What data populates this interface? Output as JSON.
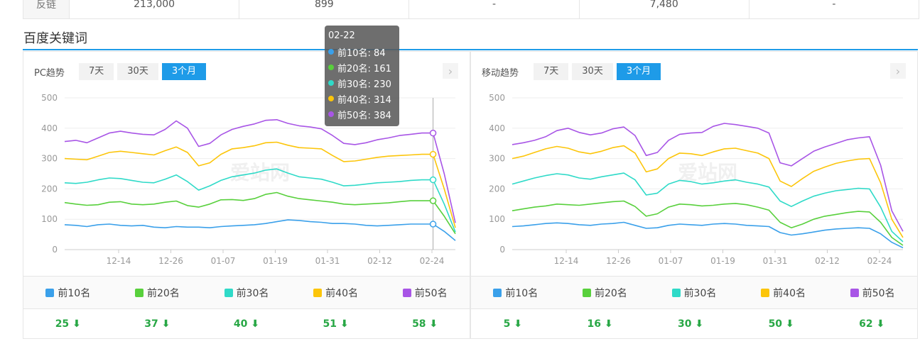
{
  "top_row": {
    "label": "反链",
    "values": [
      "213,000",
      "899",
      "-",
      "7,480",
      "-"
    ]
  },
  "section_title": "百度关键词",
  "watermark": "爱站网",
  "colors": {
    "accent": "#1e9be8",
    "top10": "#3aa0ea",
    "top20": "#58d03c",
    "top30": "#2fdac8",
    "top40": "#fcc50a",
    "top50": "#a855e6",
    "down": "#28a745"
  },
  "series_names": [
    "前10名",
    "前20名",
    "前30名",
    "前40名",
    "前50名"
  ],
  "pc": {
    "title": "PC趋势",
    "tabs": [
      "7天",
      "30天",
      "3个月"
    ],
    "active_tab": "3个月",
    "changes": [
      "25",
      "37",
      "40",
      "51",
      "58"
    ],
    "tooltip": {
      "date": "02-22",
      "rows": [
        "前10名: 84",
        "前20名: 161",
        "前30名: 230",
        "前40名: 314",
        "前50名: 384"
      ]
    }
  },
  "mobile": {
    "title": "移动趋势",
    "tabs": [
      "7天",
      "30天",
      "3个月"
    ],
    "active_tab": "3个月",
    "changes": [
      "5",
      "16",
      "30",
      "50",
      "62"
    ]
  },
  "chart_data": [
    {
      "type": "line",
      "title": "PC趋势",
      "x_ticks": [
        "12-14",
        "12-26",
        "01-07",
        "01-19",
        "01-31",
        "02-12",
        "02-24"
      ],
      "y_ticks": [
        "500",
        "400",
        "300",
        "200",
        "100",
        "0"
      ],
      "ylim": [
        0,
        500
      ],
      "series": [
        {
          "name": "前10名",
          "values": [
            82,
            80,
            76,
            82,
            84,
            80,
            78,
            80,
            74,
            72,
            76,
            74,
            74,
            72,
            76,
            78,
            80,
            82,
            86,
            92,
            98,
            96,
            92,
            90,
            86,
            86,
            84,
            80,
            78,
            80,
            82,
            84,
            84,
            84,
            60,
            30
          ]
        },
        {
          "name": "前20名",
          "values": [
            155,
            150,
            146,
            148,
            156,
            158,
            150,
            148,
            150,
            156,
            160,
            145,
            140,
            150,
            164,
            165,
            162,
            168,
            182,
            188,
            176,
            168,
            164,
            160,
            156,
            150,
            148,
            150,
            152,
            154,
            158,
            161,
            161,
            161,
            110,
            52
          ]
        },
        {
          "name": "前30名",
          "values": [
            220,
            218,
            222,
            230,
            236,
            234,
            228,
            222,
            220,
            232,
            246,
            224,
            196,
            210,
            228,
            240,
            246,
            252,
            262,
            266,
            252,
            240,
            236,
            232,
            222,
            210,
            212,
            216,
            220,
            222,
            224,
            228,
            230,
            230,
            150,
            58
          ]
        },
        {
          "name": "前40名",
          "values": [
            300,
            298,
            296,
            308,
            320,
            324,
            320,
            316,
            312,
            326,
            338,
            320,
            276,
            286,
            314,
            332,
            336,
            342,
            352,
            354,
            344,
            336,
            334,
            332,
            310,
            290,
            292,
            298,
            304,
            308,
            310,
            312,
            314,
            314,
            200,
            72
          ]
        },
        {
          "name": "前50名",
          "values": [
            356,
            360,
            352,
            368,
            384,
            390,
            384,
            380,
            378,
            396,
            424,
            400,
            340,
            350,
            378,
            396,
            406,
            414,
            426,
            428,
            416,
            408,
            404,
            398,
            376,
            350,
            346,
            352,
            362,
            368,
            376,
            380,
            384,
            384,
            250,
            88
          ]
        }
      ]
    },
    {
      "type": "line",
      "title": "移动趋势",
      "x_ticks": [
        "12-14",
        "12-26",
        "01-07",
        "01-19",
        "01-31",
        "02-12",
        "02-24"
      ],
      "y_ticks": [
        "500",
        "400",
        "300",
        "200",
        "100",
        "0"
      ],
      "ylim": [
        0,
        500
      ],
      "series": [
        {
          "name": "前10名",
          "values": [
            76,
            78,
            82,
            86,
            88,
            86,
            82,
            80,
            84,
            86,
            90,
            80,
            70,
            72,
            80,
            84,
            82,
            80,
            84,
            86,
            84,
            80,
            78,
            76,
            56,
            48,
            52,
            58,
            64,
            68,
            70,
            72,
            70,
            52,
            24,
            6
          ]
        },
        {
          "name": "前20名",
          "values": [
            128,
            134,
            140,
            144,
            150,
            148,
            146,
            150,
            154,
            158,
            160,
            142,
            110,
            118,
            140,
            150,
            148,
            144,
            146,
            150,
            152,
            148,
            140,
            130,
            90,
            72,
            84,
            100,
            110,
            116,
            122,
            126,
            124,
            90,
            40,
            14
          ]
        },
        {
          "name": "前30名",
          "values": [
            216,
            226,
            236,
            244,
            250,
            246,
            236,
            232,
            240,
            246,
            252,
            230,
            180,
            186,
            216,
            228,
            224,
            216,
            220,
            226,
            230,
            222,
            216,
            206,
            160,
            142,
            160,
            176,
            186,
            194,
            198,
            202,
            200,
            140,
            60,
            26
          ]
        },
        {
          "name": "前40名",
          "values": [
            300,
            308,
            320,
            332,
            340,
            334,
            322,
            316,
            324,
            336,
            342,
            318,
            256,
            266,
            300,
            318,
            316,
            310,
            322,
            332,
            334,
            326,
            318,
            300,
            226,
            208,
            234,
            258,
            272,
            284,
            292,
            298,
            300,
            220,
            100,
            40
          ]
        },
        {
          "name": "前50名",
          "values": [
            346,
            352,
            360,
            372,
            392,
            400,
            386,
            378,
            384,
            398,
            404,
            376,
            310,
            320,
            360,
            380,
            384,
            386,
            406,
            416,
            412,
            406,
            400,
            384,
            286,
            276,
            300,
            324,
            338,
            350,
            362,
            368,
            372,
            278,
            128,
            60
          ]
        }
      ]
    }
  ]
}
